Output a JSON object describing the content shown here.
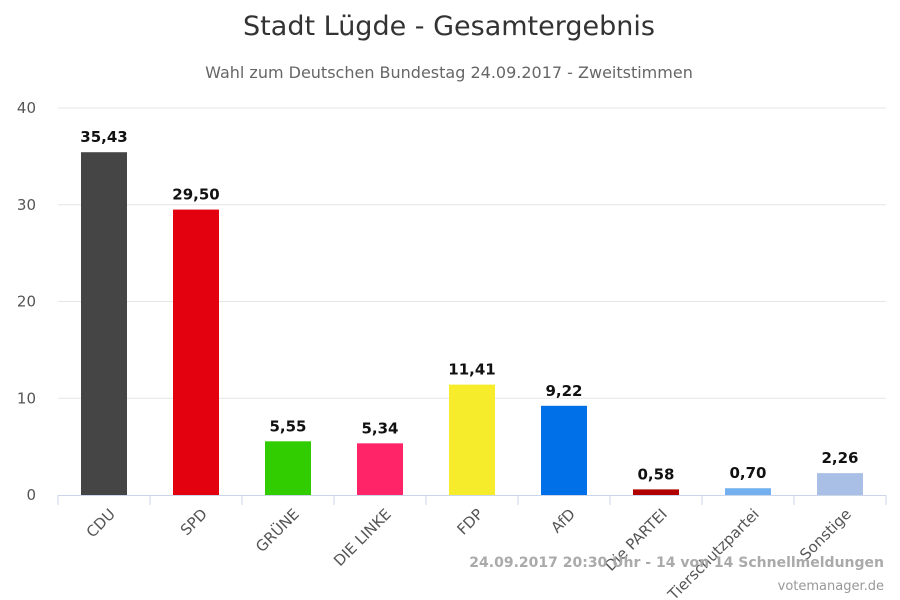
{
  "chart_data": {
    "type": "bar",
    "title": "Stadt Lügde - Gesamtergebnis",
    "subtitle": "Wahl zum Deutschen Bundestag 24.09.2017 - Zweitstimmen",
    "categories": [
      "CDU",
      "SPD",
      "GRÜNE",
      "DIE LINKE",
      "FDP",
      "AfD",
      "Die PARTEI",
      "Tierschutzpartei",
      "Sonstige"
    ],
    "values": [
      35.43,
      29.5,
      5.55,
      5.34,
      11.41,
      9.22,
      0.58,
      0.7,
      2.26
    ],
    "value_labels": [
      "35,43",
      "29,50",
      "5,55",
      "5,34",
      "11,41",
      "9,22",
      "0,58",
      "0,70",
      "2,26"
    ],
    "colors": [
      "#454545",
      "#e3000f",
      "#32cd00",
      "#ff2368",
      "#f7ec2c",
      "#0070e8",
      "#b00000",
      "#72b0ef",
      "#aabfe6"
    ],
    "ylim": [
      0,
      40
    ],
    "yticks": [
      0,
      10,
      20,
      30,
      40
    ],
    "grid": true,
    "xlabel": "",
    "ylabel": ""
  },
  "footer": {
    "status": "24.09.2017 20:30 Uhr - 14 von 14 Schnellmeldungen",
    "credit": "votemanager.de"
  }
}
